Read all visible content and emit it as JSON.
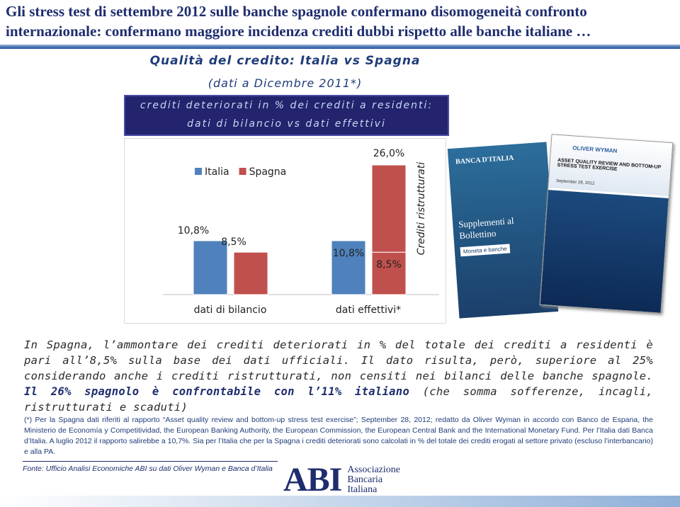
{
  "header": {
    "title_lines": [
      "Gli stress test di settembre 2012 sulle banche spagnole confermano disomogeneità confronto",
      "internazionale: confermano maggiore incidenza crediti dubbi rispetto alle banche italiane …"
    ]
  },
  "chart_data": {
    "type": "bar",
    "title": "Qualità del credito: Italia vs Spagna",
    "subtitle": "(dati a Dicembre 2011*)",
    "box_lines": [
      "crediti deteriorati in % dei crediti a residenti:",
      "dati di bilancio vs dati effettivi"
    ],
    "categories": [
      "dati di bilancio",
      "dati effettivi*"
    ],
    "series": [
      {
        "name": "Italia",
        "color": "#4f81bd",
        "values": [
          10.8,
          10.8
        ],
        "value_labels": [
          "10,8%",
          "10,8%"
        ]
      },
      {
        "name": "Spagna",
        "color": "#c0504d",
        "values": [
          8.5,
          8.5
        ],
        "value_labels": [
          "8,5%",
          "8,5%"
        ]
      },
      {
        "name": "Crediti ristrutturati",
        "color": "#c0504d",
        "stacked": true,
        "values": [
          null,
          17.5
        ]
      }
    ],
    "totals": [
      null,
      26
    ],
    "total_labels": [
      null,
      "26,0%"
    ],
    "ylim": [
      0,
      26
    ],
    "legend": "top-left"
  },
  "images": {
    "left": [
      "BANCA D'ITALIA",
      "Supplementi al Bollettino",
      "Moneta e banche"
    ],
    "right": [
      "OLIVER WYMAN",
      "ASSET QUALITY REVIEW AND BOTTOM-UP STRESS TEST EXERCISE",
      "September 28, 2012"
    ]
  },
  "paragraph": [
    {
      "text": "In Spagna, l’ammontare dei crediti deteriorati in % del totale dei crediti a residenti è pari all’8,5% sulla base dei dati ufficiali. Il dato risulta, però, superiore al 25% considerando anche i crediti ristrutturati, non censiti nei bilanci delle banche spagnole. ",
      "bold": false
    },
    {
      "text": "Il 26% spagnolo è confrontabile con l’11% italiano",
      "bold": true
    },
    {
      "text": " (che somma sofferenze, incagli, ristrutturati e scaduti)",
      "bold": false
    }
  ],
  "footnote": "(*) Per la Spagna dati riferiti al rapporto “Asset quality review and bottom-up stress test exercise”; September 28, 2012; redatto da Oliver Wyman in accordo con Banco de Espana, the Ministerio de Economía y Competitividad, the European Banking Authority, the European Commission, the European Central Bank and the International Monetary Fund. Per l’Italia dati Banca d’Italia. A luglio 2012 il rapporto salirebbe a 10,7%. Sia per l’Italia che per la Spagna i crediti deteriorati sono calcolati in % del totale dei crediti erogati al settore privato (escluso l’interbancario) e alla PA.",
  "source": "Fonte: Ufficio Analisi Economiche ABI su dati Oliver Wyman e Banca d’Italia",
  "logo": {
    "mark": "ABI",
    "lines": [
      "Associazione",
      "Bancaria",
      "Italiana"
    ]
  }
}
